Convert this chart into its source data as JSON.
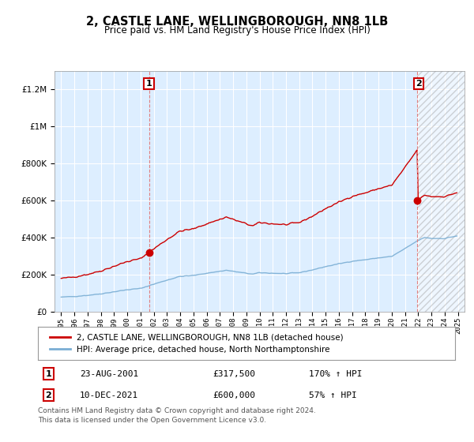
{
  "title": "2, CASTLE LANE, WELLINGBOROUGH, NN8 1LB",
  "subtitle": "Price paid vs. HM Land Registry's House Price Index (HPI)",
  "legend_line1": "2, CASTLE LANE, WELLINGBOROUGH, NN8 1LB (detached house)",
  "legend_line2": "HPI: Average price, detached house, North Northamptonshire",
  "sale1_date": "23-AUG-2001",
  "sale1_price": "£317,500",
  "sale1_hpi": "170% ↑ HPI",
  "sale1_year": 2001.64,
  "sale1_value": 317500,
  "sale2_date": "10-DEC-2021",
  "sale2_price": "£600,000",
  "sale2_hpi": "57% ↑ HPI",
  "sale2_year": 2021.94,
  "sale2_value": 600000,
  "footnote1": "Contains HM Land Registry data © Crown copyright and database right 2024.",
  "footnote2": "This data is licensed under the Open Government Licence v3.0.",
  "red_color": "#cc0000",
  "blue_color": "#7aaed4",
  "dashed_color": "#e08080",
  "chart_bg": "#ddeeff",
  "background_color": "#ffffff",
  "grid_color": "#ffffff",
  "ylim": [
    0,
    1300000
  ],
  "xlim_start": 1994.5,
  "xlim_end": 2025.5
}
